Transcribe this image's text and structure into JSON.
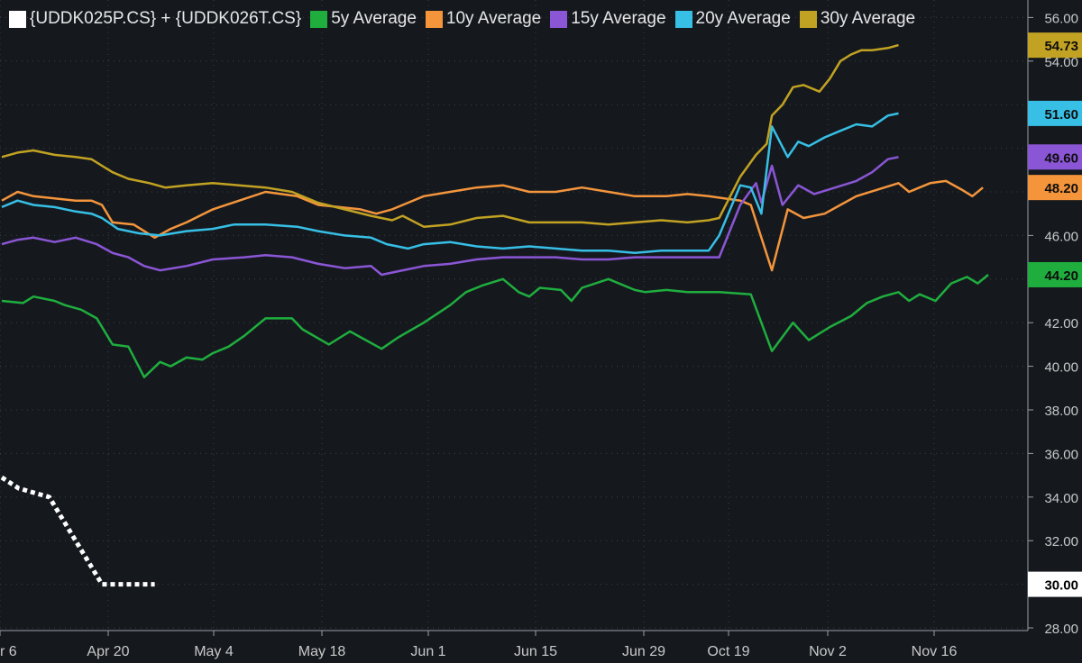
{
  "chart_data": {
    "type": "line",
    "x_ticks": [
      "r 6",
      "Apr 20",
      "May 4",
      "May 18",
      "Jun 1",
      "Jun 15",
      "Jun 29",
      "Oct 19",
      "Nov 2",
      "Nov 16"
    ],
    "y_ticks": [
      "28.00",
      "30.00",
      "32.00",
      "34.00",
      "36.00",
      "38.00",
      "40.00",
      "42.00",
      "44.00",
      "46.00",
      "48.00",
      "50.00",
      "52.00",
      "54.00",
      "56.00"
    ],
    "ylim": [
      28,
      56.5
    ],
    "grid": true,
    "legend": "top-left",
    "series": [
      {
        "name": "{UDDK025P.CS} + {UDDK026T.CS}",
        "color": "#ffffff",
        "dashed": true,
        "last_label": "30.00",
        "points": [
          [
            0,
            34.9
          ],
          [
            1.6,
            34.4
          ],
          [
            4.5,
            34.0
          ],
          [
            9.5,
            30.0
          ],
          [
            14.5,
            30.0
          ]
        ]
      },
      {
        "name": "5y Average",
        "color": "#1fae3e",
        "last_label": "44.20",
        "points": [
          [
            0,
            43.0
          ],
          [
            2,
            42.9
          ],
          [
            3,
            43.2
          ],
          [
            5,
            43.0
          ],
          [
            6,
            42.8
          ],
          [
            7.5,
            42.6
          ],
          [
            9,
            42.2
          ],
          [
            10.5,
            41.0
          ],
          [
            12,
            40.9
          ],
          [
            13.5,
            39.5
          ],
          [
            15,
            40.2
          ],
          [
            16,
            40.0
          ],
          [
            17.5,
            40.4
          ],
          [
            19,
            40.3
          ],
          [
            20,
            40.6
          ],
          [
            21.5,
            40.9
          ],
          [
            23,
            41.4
          ],
          [
            25,
            42.2
          ],
          [
            27.5,
            42.2
          ],
          [
            28.5,
            41.7
          ],
          [
            31,
            41.0
          ],
          [
            33,
            41.6
          ],
          [
            36,
            40.8
          ],
          [
            37.5,
            41.3
          ],
          [
            40,
            42.0
          ],
          [
            42.5,
            42.8
          ],
          [
            44,
            43.4
          ],
          [
            45.5,
            43.7
          ],
          [
            47.5,
            44.0
          ],
          [
            49,
            43.4
          ],
          [
            50,
            43.2
          ],
          [
            51,
            43.6
          ],
          [
            53,
            43.5
          ],
          [
            54,
            43.0
          ],
          [
            55,
            43.6
          ],
          [
            57.5,
            44.0
          ],
          [
            60,
            43.5
          ],
          [
            61,
            43.4
          ],
          [
            63,
            43.5
          ],
          [
            65,
            43.4
          ],
          [
            68,
            43.4
          ],
          [
            71,
            43.3
          ],
          [
            73,
            40.7
          ],
          [
            75,
            42.0
          ],
          [
            76.5,
            41.2
          ],
          [
            78.5,
            41.8
          ],
          [
            80.5,
            42.3
          ],
          [
            82,
            42.9
          ],
          [
            83.5,
            43.2
          ],
          [
            85,
            43.4
          ],
          [
            86,
            43.0
          ],
          [
            87,
            43.3
          ],
          [
            88.5,
            43.0
          ],
          [
            90,
            43.8
          ],
          [
            91.5,
            44.1
          ],
          [
            92.5,
            43.8
          ],
          [
            93.5,
            44.2
          ]
        ]
      },
      {
        "name": "10y Average",
        "color": "#f4953c",
        "last_label": "48.20",
        "points": [
          [
            0,
            47.6
          ],
          [
            1.5,
            48.0
          ],
          [
            3,
            47.8
          ],
          [
            5,
            47.7
          ],
          [
            7,
            47.6
          ],
          [
            8.5,
            47.6
          ],
          [
            9.5,
            47.4
          ],
          [
            10.5,
            46.6
          ],
          [
            12.5,
            46.5
          ],
          [
            14.5,
            45.9
          ],
          [
            16,
            46.3
          ],
          [
            17.5,
            46.6
          ],
          [
            20,
            47.2
          ],
          [
            22.5,
            47.6
          ],
          [
            25,
            48.0
          ],
          [
            28,
            47.8
          ],
          [
            30,
            47.4
          ],
          [
            32,
            47.3
          ],
          [
            34,
            47.2
          ],
          [
            35.5,
            47.0
          ],
          [
            37,
            47.2
          ],
          [
            38.5,
            47.5
          ],
          [
            40,
            47.8
          ],
          [
            42.5,
            48.0
          ],
          [
            45,
            48.2
          ],
          [
            47.5,
            48.3
          ],
          [
            50,
            48.0
          ],
          [
            52.5,
            48.0
          ],
          [
            55,
            48.2
          ],
          [
            57.5,
            48.0
          ],
          [
            60,
            47.8
          ],
          [
            63,
            47.8
          ],
          [
            65,
            47.9
          ],
          [
            67,
            47.8
          ],
          [
            70,
            47.6
          ],
          [
            71,
            47.4
          ],
          [
            73,
            44.4
          ],
          [
            74.5,
            47.2
          ],
          [
            76,
            46.8
          ],
          [
            78,
            47.0
          ],
          [
            79.5,
            47.4
          ],
          [
            81,
            47.8
          ],
          [
            83,
            48.1
          ],
          [
            85,
            48.4
          ],
          [
            86,
            48.0
          ],
          [
            88,
            48.4
          ],
          [
            89.5,
            48.5
          ],
          [
            91,
            48.1
          ],
          [
            92,
            47.8
          ],
          [
            93,
            48.2
          ]
        ]
      },
      {
        "name": "15y Average",
        "color": "#8b56d6",
        "last_label": "49.60",
        "points": [
          [
            0,
            45.6
          ],
          [
            1.5,
            45.8
          ],
          [
            3,
            45.9
          ],
          [
            5,
            45.7
          ],
          [
            7,
            45.9
          ],
          [
            9,
            45.6
          ],
          [
            10.5,
            45.2
          ],
          [
            12,
            45.0
          ],
          [
            13.5,
            44.6
          ],
          [
            15,
            44.4
          ],
          [
            17.5,
            44.6
          ],
          [
            20,
            44.9
          ],
          [
            23,
            45.0
          ],
          [
            25,
            45.1
          ],
          [
            27.5,
            45.0
          ],
          [
            30,
            44.7
          ],
          [
            32.5,
            44.5
          ],
          [
            35,
            44.6
          ],
          [
            36,
            44.2
          ],
          [
            38,
            44.4
          ],
          [
            40,
            44.6
          ],
          [
            42.5,
            44.7
          ],
          [
            45,
            44.9
          ],
          [
            47.5,
            45.0
          ],
          [
            50,
            45.0
          ],
          [
            52.5,
            45.0
          ],
          [
            55,
            44.9
          ],
          [
            57.5,
            44.9
          ],
          [
            60,
            45.0
          ],
          [
            62.5,
            45.0
          ],
          [
            65,
            45.0
          ],
          [
            68,
            45.0
          ],
          [
            70,
            47.4
          ],
          [
            71.5,
            48.4
          ],
          [
            72,
            47.5
          ],
          [
            73,
            49.2
          ],
          [
            74,
            47.4
          ],
          [
            75.5,
            48.3
          ],
          [
            77,
            47.9
          ],
          [
            79,
            48.2
          ],
          [
            81,
            48.5
          ],
          [
            82.5,
            48.9
          ],
          [
            84,
            49.5
          ],
          [
            85,
            49.6
          ]
        ]
      },
      {
        "name": "20y Average",
        "color": "#37bfe6",
        "last_label": "51.60",
        "points": [
          [
            0,
            47.3
          ],
          [
            1.5,
            47.6
          ],
          [
            3,
            47.4
          ],
          [
            5,
            47.3
          ],
          [
            7,
            47.1
          ],
          [
            8.5,
            47.0
          ],
          [
            9.5,
            46.8
          ],
          [
            11,
            46.3
          ],
          [
            13,
            46.1
          ],
          [
            15,
            46.0
          ],
          [
            17.5,
            46.2
          ],
          [
            20,
            46.3
          ],
          [
            22,
            46.5
          ],
          [
            25,
            46.5
          ],
          [
            28,
            46.4
          ],
          [
            30,
            46.2
          ],
          [
            32.5,
            46.0
          ],
          [
            35,
            45.9
          ],
          [
            36.5,
            45.6
          ],
          [
            38.5,
            45.4
          ],
          [
            40,
            45.6
          ],
          [
            42.5,
            45.7
          ],
          [
            45,
            45.5
          ],
          [
            47.5,
            45.4
          ],
          [
            50,
            45.5
          ],
          [
            52.5,
            45.4
          ],
          [
            55,
            45.3
          ],
          [
            57.5,
            45.3
          ],
          [
            60,
            45.2
          ],
          [
            62.5,
            45.3
          ],
          [
            65,
            45.3
          ],
          [
            67,
            45.3
          ],
          [
            68,
            46.0
          ],
          [
            70,
            48.3
          ],
          [
            71,
            48.2
          ],
          [
            72,
            47.0
          ],
          [
            73,
            51.0
          ],
          [
            74.5,
            49.6
          ],
          [
            75.5,
            50.3
          ],
          [
            76.5,
            50.1
          ],
          [
            78,
            50.5
          ],
          [
            79.5,
            50.8
          ],
          [
            81,
            51.1
          ],
          [
            82.5,
            51.0
          ],
          [
            84,
            51.5
          ],
          [
            85,
            51.6
          ]
        ]
      },
      {
        "name": "30y Average",
        "color": "#c2a222",
        "last_label": "54.73",
        "points": [
          [
            0,
            49.6
          ],
          [
            1.5,
            49.8
          ],
          [
            3,
            49.9
          ],
          [
            5,
            49.7
          ],
          [
            7,
            49.6
          ],
          [
            8.5,
            49.5
          ],
          [
            9.5,
            49.2
          ],
          [
            10.5,
            48.9
          ],
          [
            12,
            48.6
          ],
          [
            14,
            48.4
          ],
          [
            15.5,
            48.2
          ],
          [
            17.5,
            48.3
          ],
          [
            20,
            48.4
          ],
          [
            22.5,
            48.3
          ],
          [
            25,
            48.2
          ],
          [
            27.5,
            48.0
          ],
          [
            30,
            47.5
          ],
          [
            32.5,
            47.2
          ],
          [
            35,
            46.9
          ],
          [
            37,
            46.7
          ],
          [
            38,
            46.9
          ],
          [
            40,
            46.4
          ],
          [
            42.5,
            46.5
          ],
          [
            45,
            46.8
          ],
          [
            47.5,
            46.9
          ],
          [
            50,
            46.6
          ],
          [
            52.5,
            46.6
          ],
          [
            55,
            46.6
          ],
          [
            57.5,
            46.5
          ],
          [
            60,
            46.6
          ],
          [
            62.5,
            46.7
          ],
          [
            65,
            46.6
          ],
          [
            67,
            46.7
          ],
          [
            68,
            46.8
          ],
          [
            70,
            48.7
          ],
          [
            71.5,
            49.7
          ],
          [
            72.5,
            50.2
          ],
          [
            73,
            51.5
          ],
          [
            74,
            52.0
          ],
          [
            75,
            52.8
          ],
          [
            76,
            52.9
          ],
          [
            77.5,
            52.6
          ],
          [
            78.5,
            53.2
          ],
          [
            79.5,
            54.0
          ],
          [
            80.5,
            54.3
          ],
          [
            81.5,
            54.5
          ],
          [
            82.5,
            54.5
          ],
          [
            84,
            54.6
          ],
          [
            85,
            54.73
          ]
        ]
      }
    ]
  }
}
